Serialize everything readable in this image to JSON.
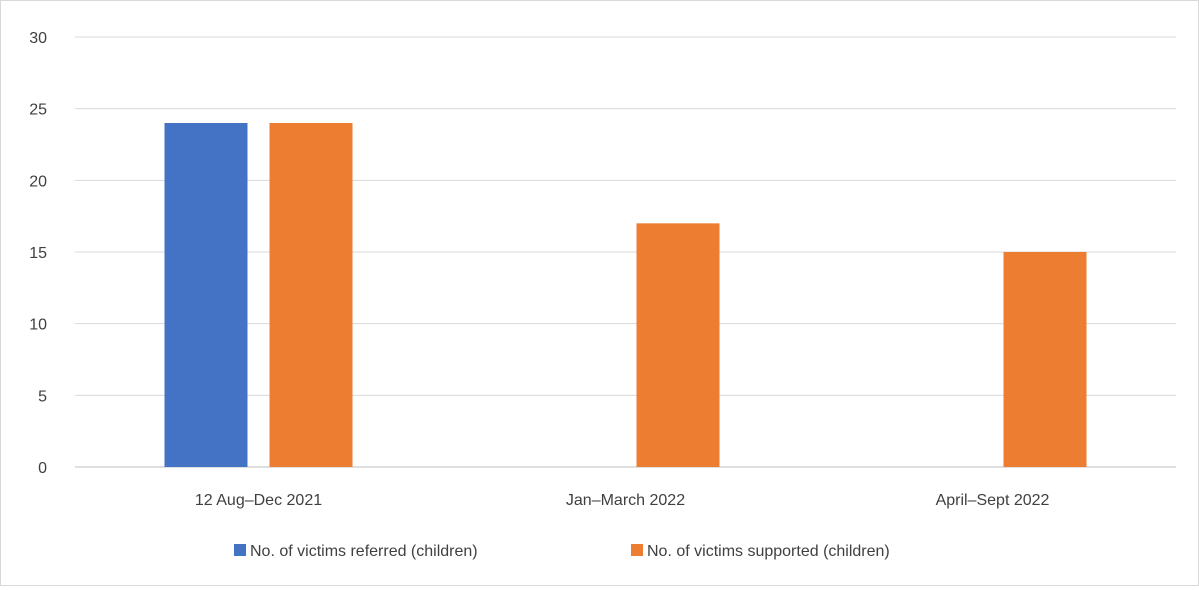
{
  "chart_data": {
    "type": "bar",
    "categories": [
      "12 Aug–Dec 2021",
      "Jan–March 2022",
      "April–Sept 2022"
    ],
    "series": [
      {
        "name": "No. of victims referred (children)",
        "color": "#4472c4",
        "values": [
          24,
          0,
          0
        ]
      },
      {
        "name": "No. of victims supported (children)",
        "color": "#ed7d31",
        "values": [
          24,
          17,
          15
        ]
      }
    ],
    "ylim": [
      0,
      30
    ],
    "yticks": [
      0,
      5,
      10,
      15,
      20,
      25,
      30
    ],
    "grid": true,
    "legend": "bottom",
    "colors": {
      "grid": "#d9d9d9",
      "axis": "#bfbfbf",
      "text": "#404040"
    }
  }
}
